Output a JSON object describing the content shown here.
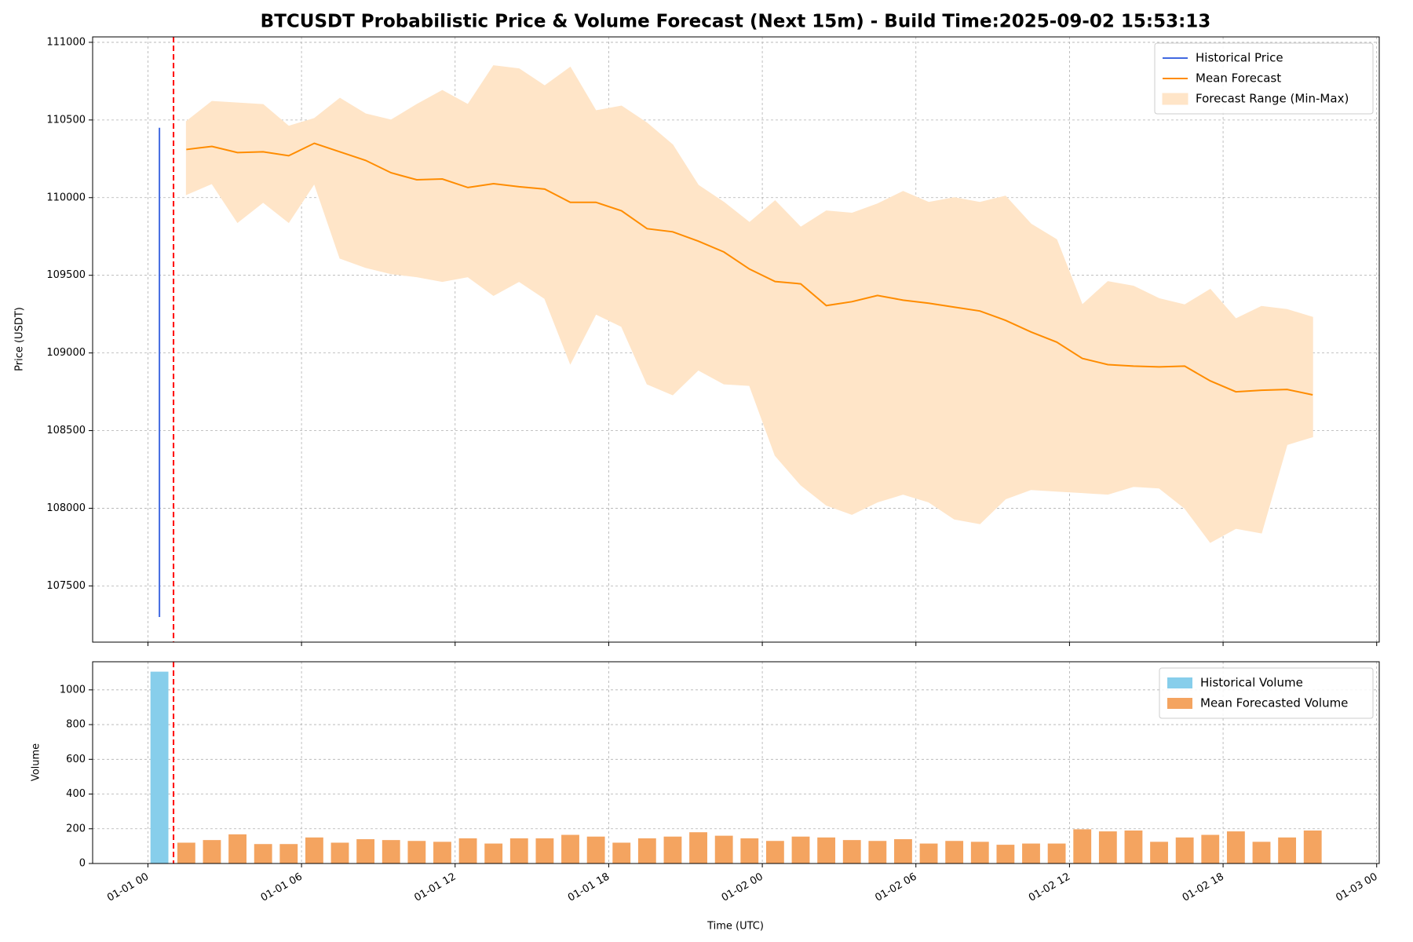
{
  "chart_data": [
    {
      "type": "line",
      "title": "BTCUSDT Probabilistic Price & Volume Forecast (Next 15m) - Build Time:2025-09-02 15:53:13",
      "y_label": "Price (USDT)",
      "xlim": [
        -2.16,
        48.1
      ],
      "xticks": [
        0,
        6,
        12,
        18,
        24,
        30,
        36,
        42,
        48
      ],
      "ylim": [
        107138,
        111035
      ],
      "yticks": [
        107500,
        108000,
        108500,
        109000,
        109500,
        110000,
        110500,
        111000
      ],
      "grid": true,
      "legend": "upper right",
      "forecast_start": 1.0,
      "forecast_start_color": "#ff0000",
      "x": [
        1.5,
        2.5,
        3.5,
        4.5,
        5.5,
        6.5,
        7.5,
        8.5,
        9.5,
        10.5,
        11.5,
        12.5,
        13.5,
        14.5,
        15.5,
        16.5,
        17.5,
        18.5,
        19.5,
        20.5,
        21.5,
        22.5,
        23.5,
        24.5,
        25.5,
        26.5,
        27.5,
        28.5,
        29.5,
        30.5,
        31.5,
        32.5,
        33.5,
        34.5,
        35.5,
        36.5,
        37.5,
        38.5,
        39.5,
        40.5,
        41.5,
        42.5,
        43.5,
        44.5,
        45.5
      ],
      "series": [
        {
          "name": "Historical Price",
          "color": "#4169e1",
          "x": [
            0.45,
            0.45
          ],
          "values": [
            110450,
            107300
          ]
        },
        {
          "name": "Mean Forecast",
          "color": "#ff8c00",
          "values": [
            110310,
            110330,
            110290,
            110295,
            110270,
            110350,
            110295,
            110240,
            110160,
            110115,
            110120,
            110065,
            110090,
            110070,
            110055,
            109970,
            109970,
            109915,
            109800,
            109780,
            109720,
            109650,
            109540,
            109460,
            109445,
            109305,
            109330,
            109370,
            109340,
            109320,
            109295,
            109270,
            109210,
            109135,
            109070,
            108965,
            108925,
            108915,
            108910,
            108915,
            108820,
            108750,
            108760,
            108765,
            108730
          ]
        },
        {
          "name": "Forecast Range (Min-Max)",
          "color": "#ffe5c8",
          "upper": [
            110490,
            110620,
            110610,
            110600,
            110460,
            110510,
            110640,
            110540,
            110500,
            110600,
            110690,
            110600,
            110850,
            110830,
            110720,
            110840,
            110560,
            110590,
            110480,
            110340,
            110080,
            109970,
            109840,
            109980,
            109810,
            109915,
            109900,
            109960,
            110040,
            109970,
            110000,
            109970,
            110010,
            109830,
            109730,
            109310,
            109460,
            109430,
            109350,
            109310,
            109410,
            109220,
            109300,
            109280,
            109230
          ],
          "lower": [
            110020,
            110090,
            109840,
            109970,
            109840,
            110090,
            109610,
            109550,
            109510,
            109490,
            109460,
            109490,
            109370,
            109460,
            109350,
            108930,
            109250,
            109170,
            108800,
            108730,
            108890,
            108800,
            108790,
            108340,
            108150,
            108020,
            107960,
            108040,
            108090,
            108040,
            107930,
            107900,
            108060,
            108120,
            108110,
            108100,
            108090,
            108140,
            108130,
            108000,
            107780,
            107870,
            107840,
            108410,
            108460
          ]
        }
      ]
    },
    {
      "type": "bar",
      "x_label": "Time (UTC)",
      "y_label": "Volume",
      "xlim": [
        -2.16,
        48.1
      ],
      "xticks": [
        {
          "value": 0,
          "label": "01-01 00"
        },
        {
          "value": 6,
          "label": "01-01 06"
        },
        {
          "value": 12,
          "label": "01-01 12"
        },
        {
          "value": 18,
          "label": "01-01 18"
        },
        {
          "value": 24,
          "label": "01-02 00"
        },
        {
          "value": 30,
          "label": "01-02 06"
        },
        {
          "value": 36,
          "label": "01-02 12"
        },
        {
          "value": 42,
          "label": "01-02 18"
        },
        {
          "value": 48,
          "label": "01-03 00"
        }
      ],
      "ylim": [
        0,
        1162
      ],
      "yticks": [
        0,
        200,
        400,
        600,
        800,
        1000
      ],
      "grid": true,
      "legend": "upper right",
      "forecast_start": 1.0,
      "forecast_start_color": "#ff0000",
      "x": [
        1.5,
        2.5,
        3.5,
        4.5,
        5.5,
        6.5,
        7.5,
        8.5,
        9.5,
        10.5,
        11.5,
        12.5,
        13.5,
        14.5,
        15.5,
        16.5,
        17.5,
        18.5,
        19.5,
        20.5,
        21.5,
        22.5,
        23.5,
        24.5,
        25.5,
        26.5,
        27.5,
        28.5,
        29.5,
        30.5,
        31.5,
        32.5,
        33.5,
        34.5,
        35.5,
        36.5,
        37.5,
        38.5,
        39.5,
        40.5,
        41.5,
        42.5,
        43.5,
        44.5,
        45.5
      ],
      "series": [
        {
          "name": "Historical Volume",
          "color": "#87ceeb",
          "x": [
            0.45
          ],
          "values": [
            1105
          ]
        },
        {
          "name": "Mean Forecasted Volume",
          "color": "#f4a460",
          "values": [
            120,
            135,
            168,
            112,
            112,
            150,
            120,
            140,
            135,
            130,
            125,
            145,
            115,
            145,
            145,
            165,
            155,
            120,
            145,
            155,
            180,
            160,
            145,
            130,
            155,
            150,
            135,
            130,
            140,
            115,
            130,
            125,
            108,
            115,
            115,
            197,
            185,
            190,
            125,
            150,
            165,
            185,
            125,
            150,
            190
          ]
        }
      ]
    }
  ]
}
